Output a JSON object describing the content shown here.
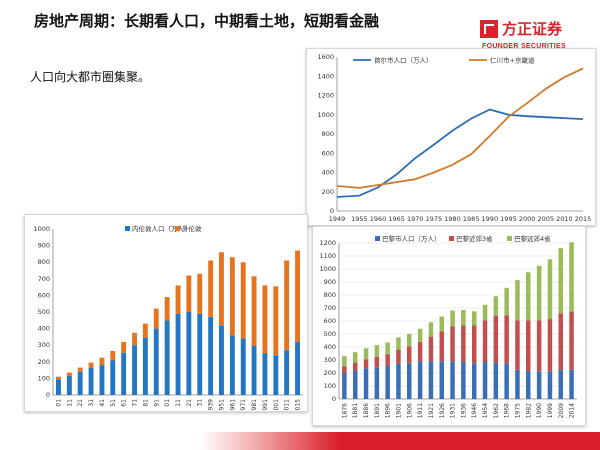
{
  "slide": {
    "title": "房地产周期：长期看人口，中期看土地，短期看金融",
    "subtitle": "人口向大都市圈集聚。"
  },
  "logo": {
    "name_cn": "方正证券",
    "name_en": "FOUNDER SECURITIES",
    "color": "#d6262c"
  },
  "chart_data": [
    {
      "type": "line",
      "x": [
        1949,
        1955,
        1960,
        1965,
        1970,
        1975,
        1980,
        1985,
        1990,
        1995,
        2000,
        2005,
        2010,
        2015
      ],
      "x_ticks": [
        "1949",
        "1955",
        "1960",
        "1965",
        "1970",
        "1975",
        "1980",
        "1985",
        "1990",
        "1995",
        "2000",
        "2005",
        "2010",
        "2015"
      ],
      "series": [
        {
          "name": "首尔市人口（万人）",
          "color": "#2e6db4",
          "values": [
            145,
            160,
            245,
            380,
            550,
            690,
            835,
            960,
            1055,
            1000,
            985,
            975,
            965,
            955
          ]
        },
        {
          "name": "仁川市+京畿道",
          "color": "#d07a2a",
          "values": [
            260,
            240,
            270,
            300,
            330,
            400,
            480,
            590,
            780,
            980,
            1120,
            1270,
            1390,
            1480
          ]
        }
      ],
      "ylim": [
        0,
        1600
      ],
      "yticks": [
        0,
        200,
        400,
        600,
        800,
        1000,
        1200,
        1400,
        1600
      ],
      "legend": "top",
      "grid": false
    },
    {
      "type": "bar",
      "stacked": true,
      "categories": [
        "01",
        "11",
        "21",
        "31",
        "41",
        "51",
        "61",
        "71",
        "81",
        "91",
        "01",
        "11",
        "21",
        "31",
        "1939",
        "1951",
        "1961",
        "1971",
        "1981",
        "1991",
        "2001",
        "2011",
        "2015"
      ],
      "series": [
        {
          "name": "内伦敦人口（万人）",
          "color": "#2376c2",
          "values": [
            95,
            115,
            140,
            165,
            180,
            210,
            255,
            300,
            345,
            400,
            450,
            490,
            500,
            490,
            470,
            420,
            360,
            340,
            295,
            250,
            235,
            270,
            320
          ]
        },
        {
          "name": "外伦敦",
          "color": "#e6741e",
          "values": [
            15,
            20,
            25,
            30,
            45,
            55,
            65,
            75,
            85,
            120,
            140,
            170,
            220,
            240,
            340,
            440,
            470,
            460,
            420,
            410,
            420,
            540,
            550
          ]
        }
      ],
      "ylim": [
        0,
        1000
      ],
      "yticks": [
        0,
        100,
        200,
        300,
        400,
        500,
        600,
        700,
        800,
        900,
        1000
      ],
      "legend": "top",
      "grid": false
    },
    {
      "type": "bar",
      "stacked": true,
      "categories": [
        "1876",
        "1881",
        "1886",
        "1891",
        "1896",
        "1901",
        "1906",
        "1911",
        "1921",
        "1926",
        "1931",
        "1936",
        "1946",
        "1954",
        "1962",
        "1968",
        "1975",
        "1982",
        "1990",
        "1999",
        "2009",
        "2014"
      ],
      "series": [
        {
          "name": "巴黎市人口（万人）",
          "color": "#3b6fb5",
          "values": [
            200,
            220,
            235,
            245,
            255,
            270,
            275,
            290,
            290,
            290,
            290,
            285,
            275,
            285,
            280,
            275,
            225,
            215,
            210,
            210,
            225,
            225
          ]
        },
        {
          "name": "巴黎近郊3省",
          "color": "#c0504d",
          "values": [
            50,
            60,
            70,
            80,
            90,
            110,
            130,
            150,
            190,
            230,
            270,
            280,
            290,
            320,
            360,
            370,
            380,
            390,
            395,
            405,
            435,
            450
          ]
        },
        {
          "name": "巴黎远郊4省",
          "color": "#9bbb59",
          "values": [
            80,
            80,
            85,
            90,
            90,
            95,
            95,
            100,
            110,
            115,
            120,
            120,
            110,
            120,
            150,
            210,
            310,
            370,
            420,
            460,
            500,
            530
          ]
        }
      ],
      "ylim": [
        0,
        1200
      ],
      "yticks": [
        0,
        100,
        200,
        300,
        400,
        500,
        600,
        700,
        800,
        900,
        1000,
        1100,
        1200
      ],
      "legend": "top",
      "grid": true
    }
  ]
}
